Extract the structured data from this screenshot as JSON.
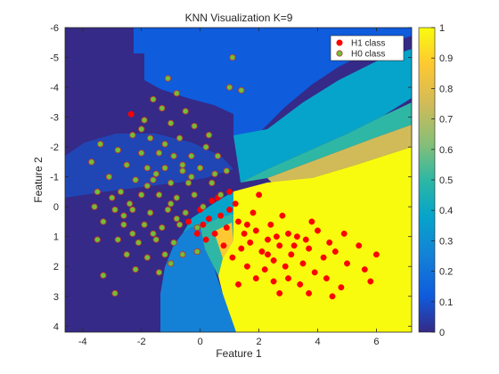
{
  "chart_data": {
    "type": "scatter",
    "title": "KNN Visualization K=9",
    "xlabel": "Feature 1",
    "ylabel": "Feature 2",
    "xlim": [
      -4.6,
      7.2
    ],
    "ylim": [
      -6,
      4.2
    ],
    "y_axis_reversed": true,
    "xticks": [
      -4,
      -2,
      0,
      2,
      4,
      6
    ],
    "yticks": [
      -6,
      -5,
      -4,
      -3,
      -2,
      -1,
      0,
      1,
      2,
      3,
      4
    ],
    "legend_position": "top-right",
    "series": [
      {
        "name": "H1 class",
        "color": "#ff0000",
        "marker": "circle",
        "points": [
          [
            -2.35,
            -3.1
          ],
          [
            0.1,
            0.6
          ],
          [
            0.4,
            -0.2
          ],
          [
            0.7,
            0.3
          ],
          [
            1.0,
            0.1
          ],
          [
            1.3,
            0.5
          ],
          [
            1.5,
            0.9
          ],
          [
            1.7,
            1.2
          ],
          [
            1.9,
            0.8
          ],
          [
            2.1,
            1.5
          ],
          [
            2.3,
            1.1
          ],
          [
            2.5,
            1.8
          ],
          [
            2.7,
            1.3
          ],
          [
            2.9,
            2.0
          ],
          [
            3.1,
            1.6
          ],
          [
            3.3,
            1.0
          ],
          [
            3.5,
            1.9
          ],
          [
            3.7,
            1.4
          ],
          [
            3.9,
            2.2
          ],
          [
            4.2,
            1.7
          ],
          [
            4.6,
            1.5
          ],
          [
            5.0,
            1.9
          ],
          [
            5.6,
            2.1
          ],
          [
            4.8,
            2.7
          ],
          [
            3.4,
            2.6
          ],
          [
            2.7,
            2.9
          ],
          [
            1.9,
            2.4
          ],
          [
            1.6,
            2.0
          ],
          [
            1.1,
            1.7
          ],
          [
            0.8,
            1.3
          ],
          [
            0.5,
            0.9
          ],
          [
            0.2,
            1.1
          ],
          [
            -0.1,
            0.9
          ],
          [
            -0.4,
            0.5
          ],
          [
            0.0,
            0.1
          ],
          [
            0.6,
            -0.3
          ],
          [
            1.2,
            -0.1
          ],
          [
            1.8,
            0.2
          ],
          [
            2.4,
            0.6
          ],
          [
            3.0,
            0.9
          ],
          [
            3.6,
            1.1
          ],
          [
            4.0,
            0.8
          ],
          [
            4.4,
            1.2
          ],
          [
            5.4,
            1.3
          ],
          [
            6.0,
            1.6
          ],
          [
            5.8,
            2.5
          ],
          [
            4.3,
            2.4
          ],
          [
            3.0,
            2.4
          ],
          [
            2.2,
            2.1
          ],
          [
            1.4,
            1.4
          ],
          [
            0.9,
            0.7
          ],
          [
            2.8,
            0.3
          ],
          [
            3.8,
            0.5
          ],
          [
            4.9,
            0.9
          ],
          [
            2.0,
            -0.4
          ],
          [
            1.0,
            -0.5
          ],
          [
            2.6,
            1.0
          ],
          [
            3.2,
            1.3
          ],
          [
            1.6,
            0.6
          ],
          [
            2.3,
            1.6
          ],
          [
            3.7,
            2.9
          ],
          [
            2.5,
            2.5
          ],
          [
            1.3,
            2.6
          ],
          [
            4.5,
            3.0
          ],
          [
            0.3,
            0.4
          ]
        ]
      },
      {
        "name": "H0 class",
        "color": "#6fbf3a",
        "edge_color": "#c0392b",
        "marker": "circle",
        "points": [
          [
            1.1,
            -5.0
          ],
          [
            1.0,
            -4.0
          ],
          [
            1.4,
            -3.9
          ],
          [
            -1.1,
            -4.3
          ],
          [
            -0.8,
            -3.8
          ],
          [
            -1.6,
            -3.6
          ],
          [
            -1.3,
            -3.3
          ],
          [
            -0.5,
            -3.2
          ],
          [
            -1.9,
            -2.9
          ],
          [
            -1.0,
            -2.8
          ],
          [
            -0.2,
            -2.7
          ],
          [
            -2.3,
            -2.4
          ],
          [
            -1.7,
            -2.3
          ],
          [
            -0.7,
            -2.3
          ],
          [
            0.3,
            -2.4
          ],
          [
            -3.4,
            -2.1
          ],
          [
            -2.8,
            -1.9
          ],
          [
            -2.0,
            -1.8
          ],
          [
            -1.4,
            -1.8
          ],
          [
            -0.9,
            -1.7
          ],
          [
            -0.3,
            -1.7
          ],
          [
            0.6,
            -1.7
          ],
          [
            -3.7,
            -1.5
          ],
          [
            -2.5,
            -1.4
          ],
          [
            -1.8,
            -1.3
          ],
          [
            -1.2,
            -1.3
          ],
          [
            -0.6,
            -1.2
          ],
          [
            0.0,
            -1.3
          ],
          [
            0.9,
            -1.2
          ],
          [
            -3.1,
            -1.0
          ],
          [
            -2.2,
            -0.9
          ],
          [
            -1.6,
            -0.9
          ],
          [
            -1.0,
            -0.8
          ],
          [
            -0.4,
            -0.8
          ],
          [
            0.4,
            -0.8
          ],
          [
            -3.5,
            -0.5
          ],
          [
            -2.7,
            -0.5
          ],
          [
            -2.0,
            -0.4
          ],
          [
            -1.4,
            -0.4
          ],
          [
            -0.8,
            -0.3
          ],
          [
            -0.2,
            -0.4
          ],
          [
            0.7,
            -0.4
          ],
          [
            -3.6,
            0.0
          ],
          [
            -2.9,
            0.1
          ],
          [
            -2.3,
            0.1
          ],
          [
            -1.7,
            0.2
          ],
          [
            -1.1,
            0.1
          ],
          [
            -0.5,
            0.2
          ],
          [
            0.1,
            0.0
          ],
          [
            -3.3,
            0.5
          ],
          [
            -2.6,
            0.6
          ],
          [
            -1.9,
            0.6
          ],
          [
            -1.3,
            0.7
          ],
          [
            -0.7,
            0.6
          ],
          [
            -0.1,
            0.7
          ],
          [
            -3.5,
            1.1
          ],
          [
            -2.8,
            1.1
          ],
          [
            -2.1,
            1.2
          ],
          [
            -1.5,
            1.1
          ],
          [
            -0.9,
            1.2
          ],
          [
            -2.5,
            1.6
          ],
          [
            -1.8,
            1.7
          ],
          [
            -1.2,
            1.6
          ],
          [
            -0.6,
            1.6
          ],
          [
            -2.2,
            2.1
          ],
          [
            -1.4,
            2.2
          ],
          [
            -3.3,
            2.3
          ],
          [
            -2.9,
            2.9
          ],
          [
            -0.1,
            1.5
          ],
          [
            -1.0,
            1.9
          ],
          [
            -2.4,
            -0.1
          ],
          [
            -1.5,
            -1.1
          ],
          [
            -0.3,
            -1.0
          ],
          [
            0.2,
            -2.0
          ],
          [
            -2.0,
            -2.6
          ],
          [
            -1.2,
            -2.1
          ],
          [
            -0.6,
            -1.4
          ],
          [
            -1.8,
            -0.7
          ],
          [
            -1.0,
            -0.1
          ],
          [
            -2.6,
            0.3
          ],
          [
            -0.8,
            0.4
          ],
          [
            -1.6,
            0.9
          ],
          [
            -2.3,
            0.9
          ],
          [
            -3.0,
            -0.3
          ],
          [
            0.5,
            -1.1
          ]
        ]
      }
    ],
    "colorbar": {
      "min": 0,
      "max": 1,
      "ticks": [
        0,
        0.1,
        0.2,
        0.3,
        0.4,
        0.5,
        0.6,
        0.7,
        0.8,
        0.9,
        1
      ],
      "colormap": "parula",
      "colors": [
        "#352a87",
        "#0f5cdd",
        "#1481d6",
        "#06a4ca",
        "#2eb7a4",
        "#87bf77",
        "#d1bb59",
        "#fec832",
        "#f9fb0e"
      ]
    }
  }
}
